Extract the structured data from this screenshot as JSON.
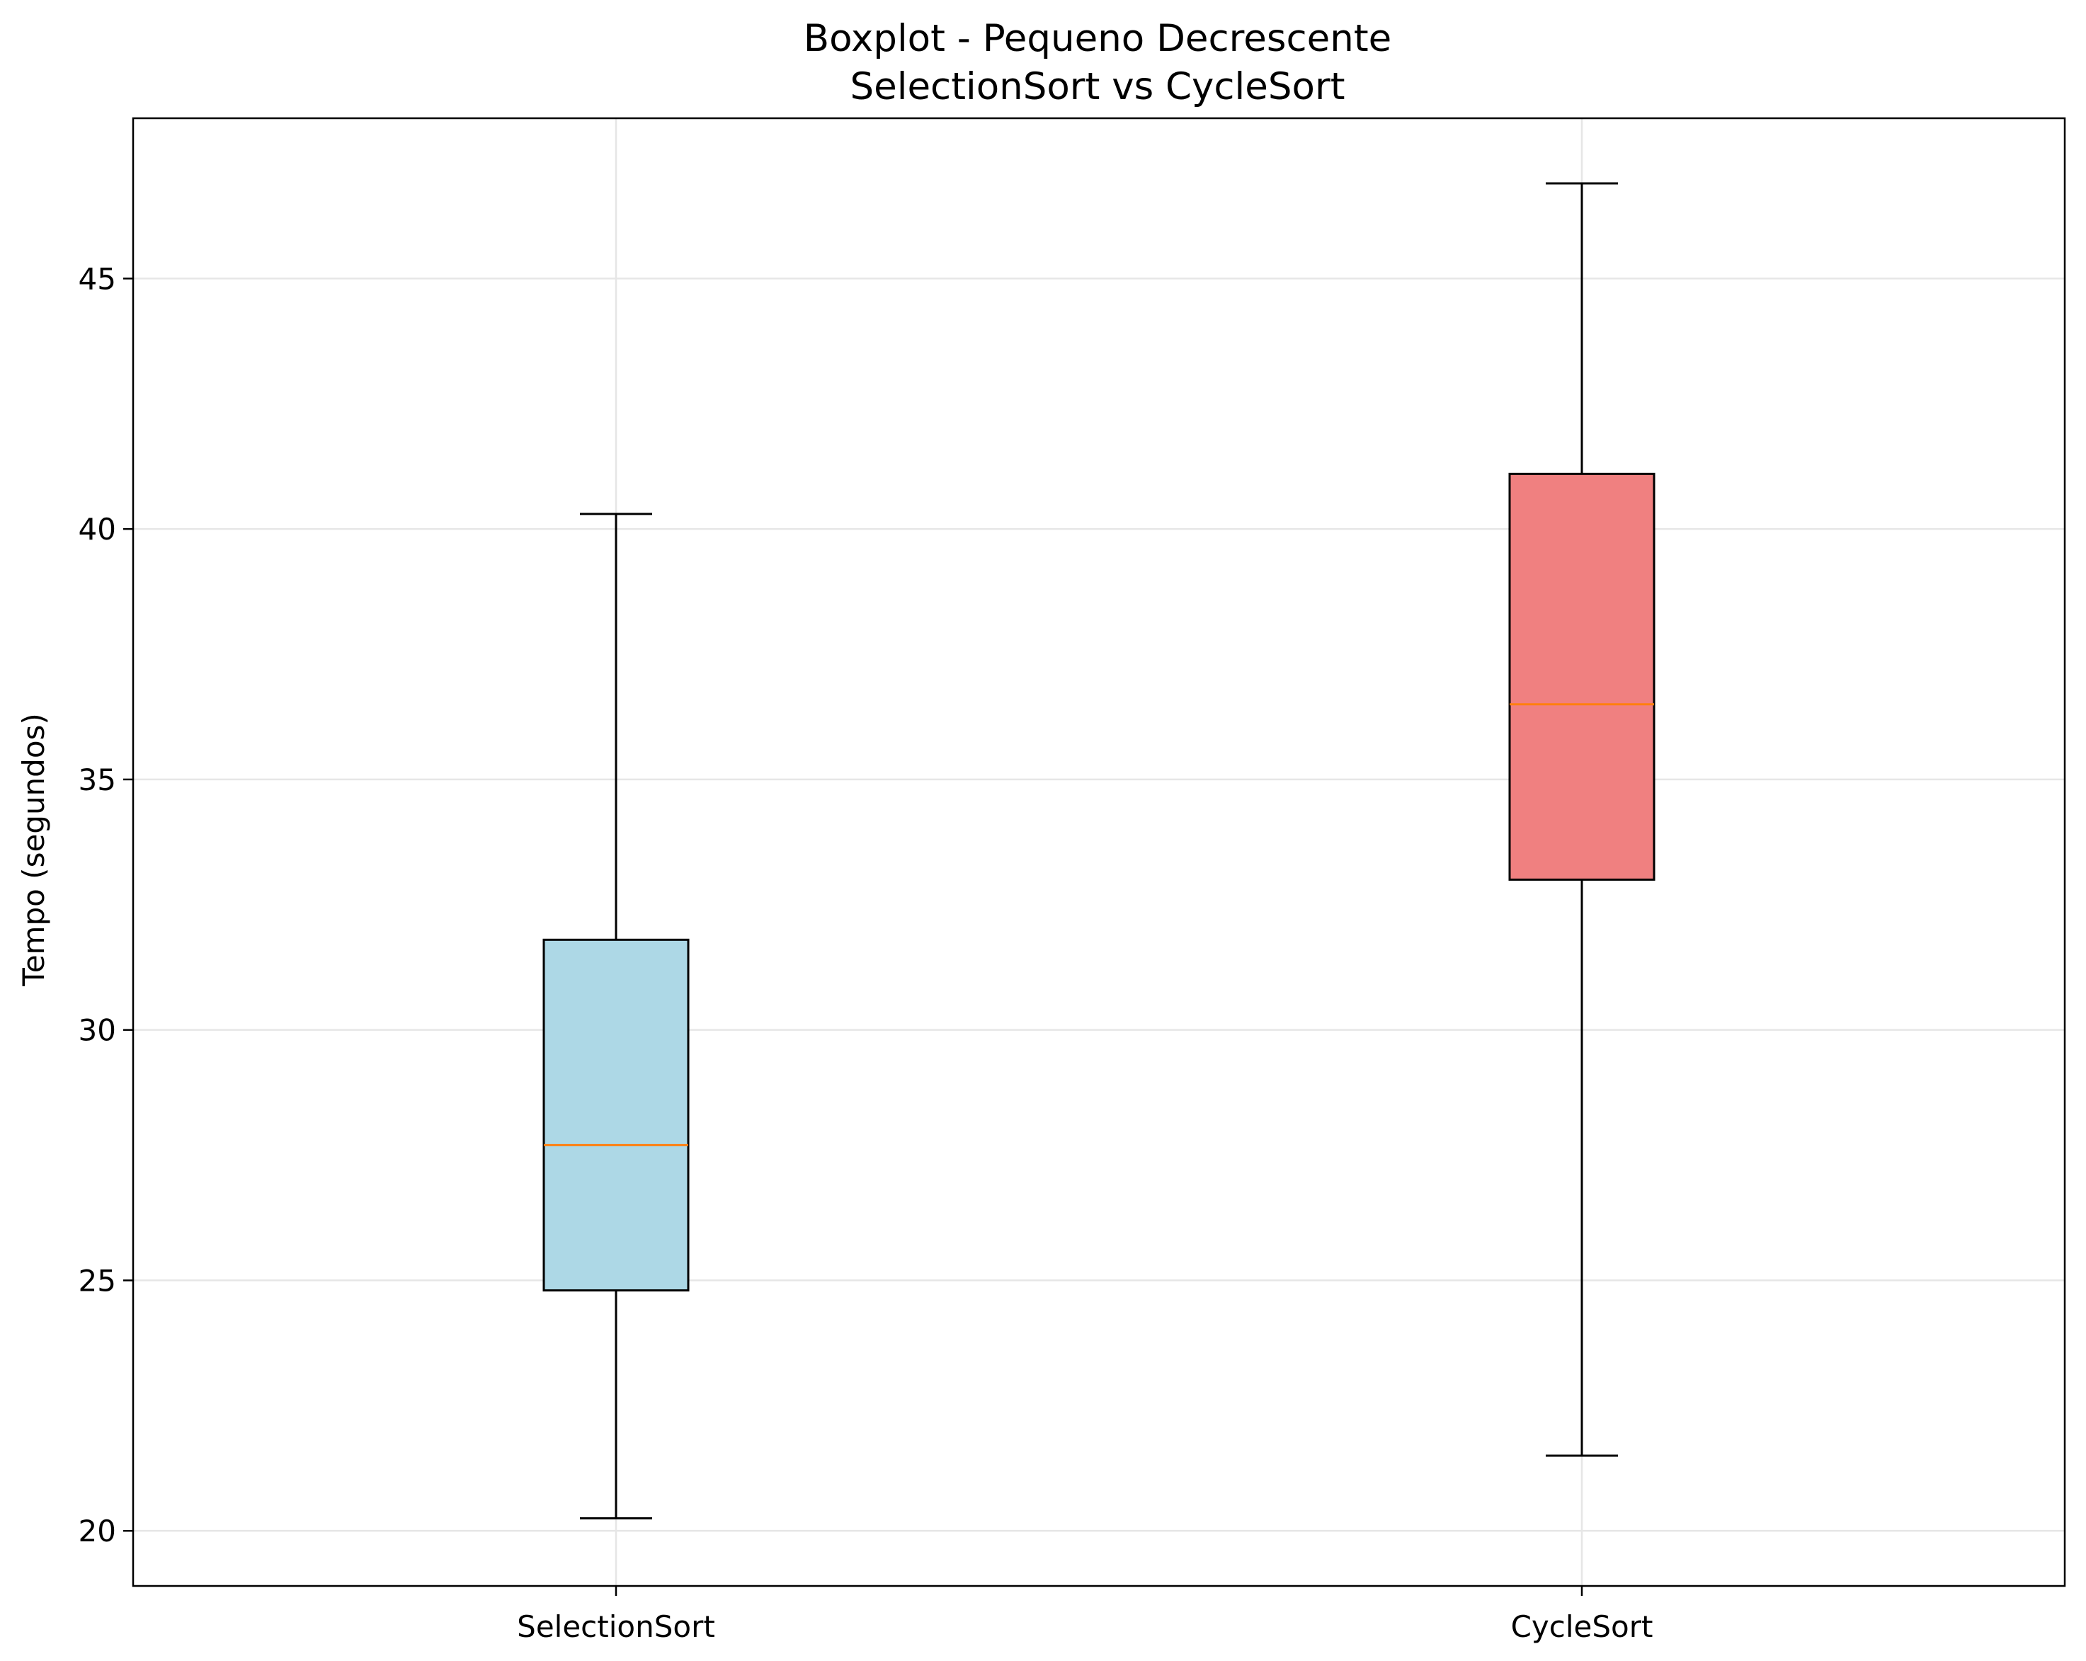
{
  "chart_data": {
    "type": "boxplot",
    "title": [
      "Boxplot - Pequeno Decrescente",
      "SelectionSort vs CycleSort"
    ],
    "xlabel": "",
    "ylabel": "Tempo (segundos)",
    "ylim": [
      18.9,
      48.2
    ],
    "yticks": [
      20,
      25,
      30,
      35,
      40,
      45
    ],
    "grid": true,
    "legend": "none",
    "categories": [
      "SelectionSort",
      "CycleSort"
    ],
    "series": [
      {
        "category": "SelectionSort",
        "whisker_low": 20.25,
        "q1": 24.8,
        "median": 27.7,
        "q3": 31.8,
        "whisker_high": 40.3,
        "color": "#add8e6"
      },
      {
        "category": "CycleSort",
        "whisker_low": 21.5,
        "q1": 33.0,
        "median": 36.5,
        "q3": 41.1,
        "whisker_high": 46.9,
        "color": "#f08080"
      }
    ],
    "colors": {
      "median": "#ff7f0e",
      "grid": "#e6e6e6",
      "axes": "#000000"
    }
  }
}
